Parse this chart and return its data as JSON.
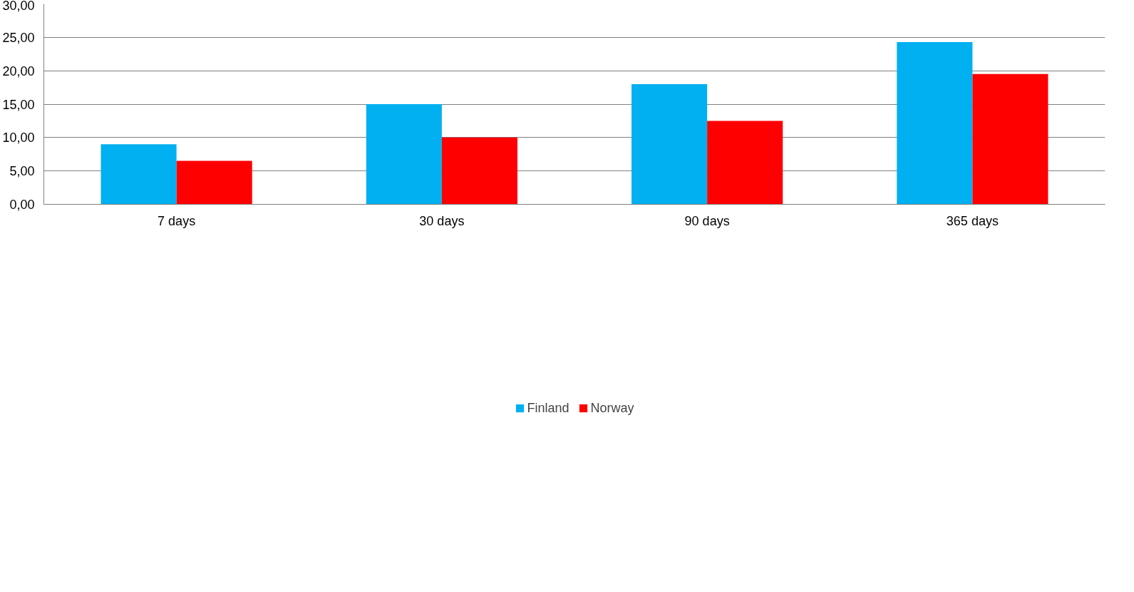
{
  "chart_data": {
    "type": "bar",
    "categories": [
      "7 days",
      "30 days",
      "90 days",
      "365 days"
    ],
    "series": [
      {
        "name": "Finland",
        "color": "#00b0f0",
        "values": [
          9,
          15,
          18,
          24.3
        ]
      },
      {
        "name": "Norway",
        "color": "#ff0000",
        "values": [
          6.5,
          10,
          12.5,
          19.5
        ]
      }
    ],
    "ylim": [
      0,
      30
    ],
    "yticks": [
      {
        "value": 0,
        "label": "0,00"
      },
      {
        "value": 5,
        "label": "5,00"
      },
      {
        "value": 10,
        "label": "10,00"
      },
      {
        "value": 15,
        "label": "15,00"
      },
      {
        "value": 20,
        "label": "20,00"
      },
      {
        "value": 25,
        "label": "25,00"
      },
      {
        "value": 30,
        "label": "30,00"
      }
    ],
    "grid": "y",
    "legend": "bottom"
  }
}
